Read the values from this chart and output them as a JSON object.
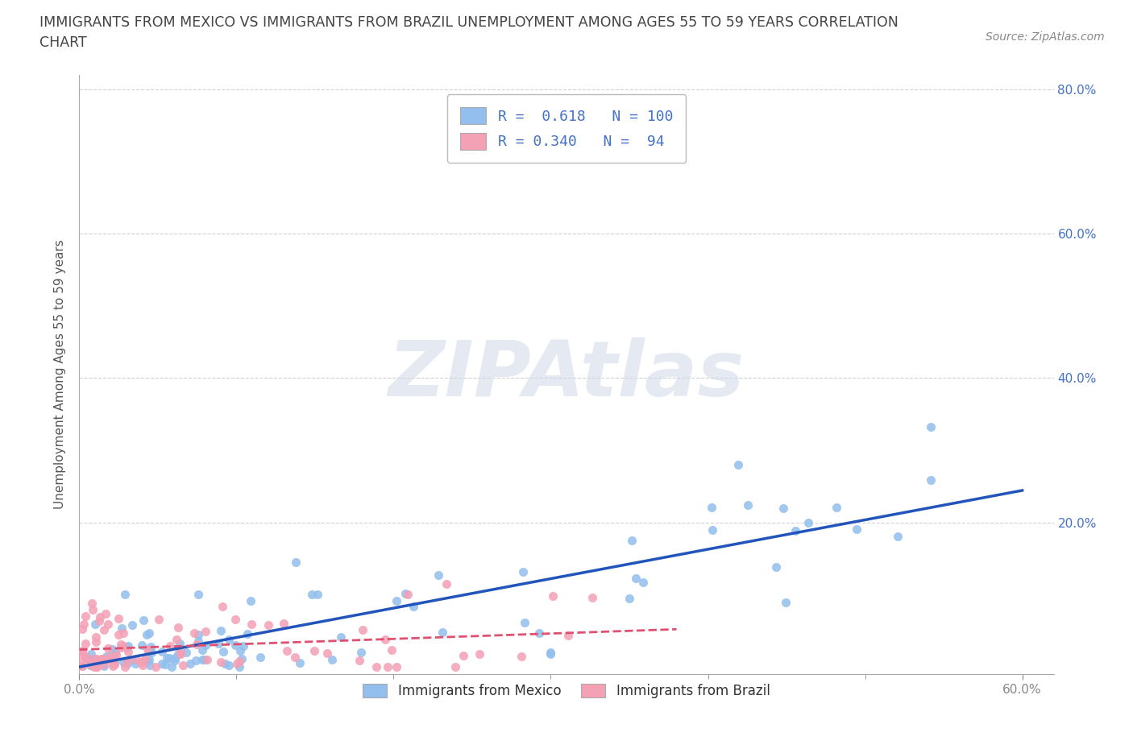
{
  "title_line1": "IMMIGRANTS FROM MEXICO VS IMMIGRANTS FROM BRAZIL UNEMPLOYMENT AMONG AGES 55 TO 59 YEARS CORRELATION",
  "title_line2": "CHART",
  "source": "Source: ZipAtlas.com",
  "ylabel": "Unemployment Among Ages 55 to 59 years",
  "mexico_R": 0.618,
  "mexico_N": 100,
  "brazil_R": 0.34,
  "brazil_N": 94,
  "mexico_color": "#92BFED",
  "brazil_color": "#F4A0B5",
  "mexico_line_color": "#2255BB",
  "brazil_line_color": "#E05070",
  "xlim": [
    0.0,
    0.62
  ],
  "ylim": [
    -0.01,
    0.82
  ],
  "ytick_positions": [
    0.2,
    0.4,
    0.6,
    0.8
  ],
  "ytick_labels": [
    "20.0%",
    "40.0%",
    "60.0%",
    "80.0%"
  ],
  "title_color": "#555555",
  "grid_color": "#CCCCCC",
  "watermark": "ZIPAtlas",
  "legend1_label1": "R =  0.618   N = 100",
  "legend1_label2": "R = 0.340   N =  94",
  "legend2_label1": "Immigrants from Mexico",
  "legend2_label2": "Immigrants from Brazil"
}
